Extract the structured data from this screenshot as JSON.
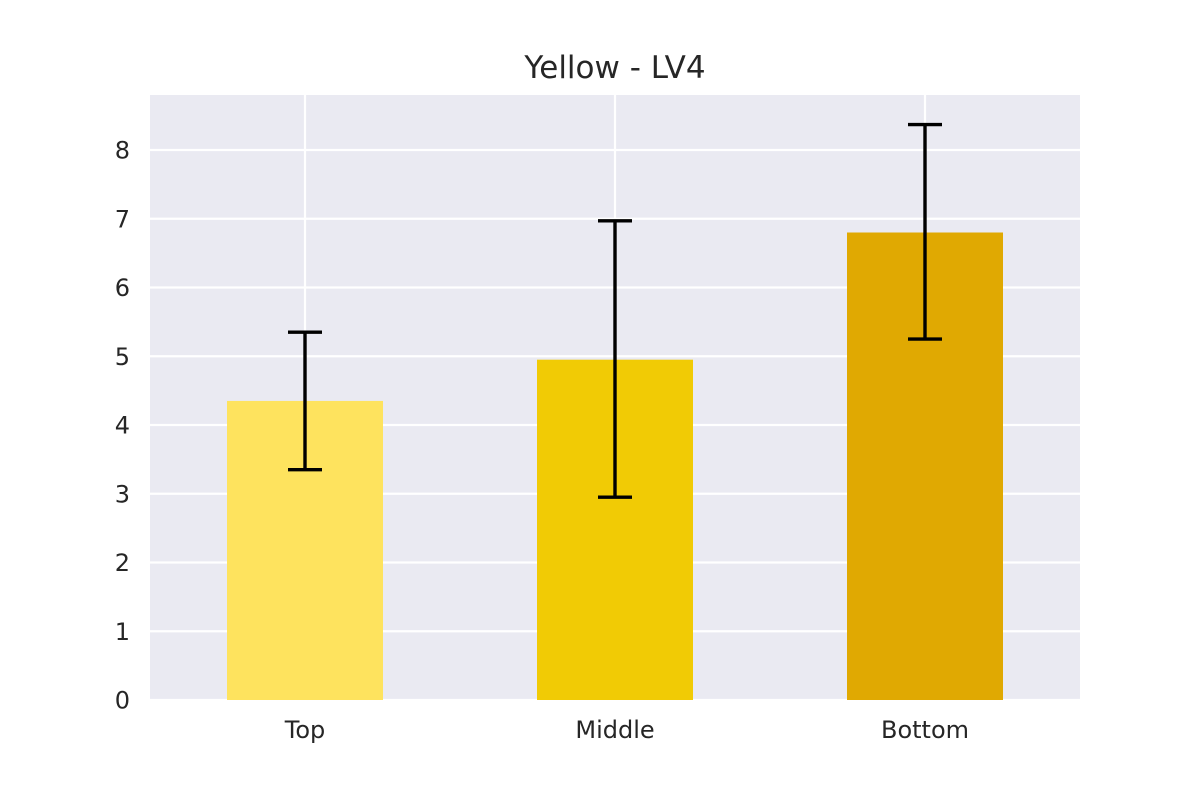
{
  "chart_data": {
    "type": "bar",
    "title": "Yellow - LV4",
    "xlabel": "",
    "ylabel": "",
    "categories": [
      "Top",
      "Middle",
      "Bottom"
    ],
    "values": [
      4.35,
      4.95,
      6.8
    ],
    "error_bars": [
      [
        3.35,
        5.35
      ],
      [
        2.95,
        6.97
      ],
      [
        5.25,
        8.37
      ]
    ],
    "colors": [
      "#fee35e",
      "#f1cb05",
      "#e0a902"
    ],
    "error_color": "#000000",
    "yticks": [
      0,
      1,
      2,
      3,
      4,
      5,
      6,
      7,
      8
    ],
    "ylim": [
      0,
      8.8
    ],
    "grid": true,
    "background_color": "#eaeaf2",
    "grid_color": "#ffffff"
  }
}
